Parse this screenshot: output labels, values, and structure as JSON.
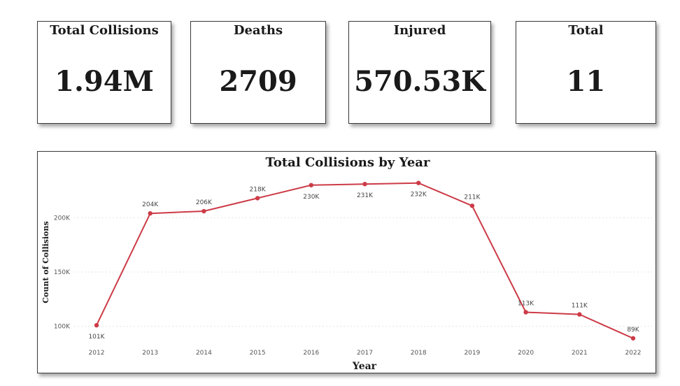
{
  "kpis": [
    {
      "title": "Total Collisions",
      "value": "1.94M"
    },
    {
      "title": "Deaths",
      "value": "2709"
    },
    {
      "title": "Injured",
      "value": "570.53K"
    },
    {
      "title": "Total",
      "value": "11"
    }
  ],
  "colors": {
    "line": "#cc3b47",
    "gridline": "#e3e3e3",
    "border": "#3a3a3a"
  },
  "chart_data": {
    "type": "line",
    "title": "Total Collisions by Year",
    "xlabel": "Year",
    "ylabel": "Count of Collisions",
    "x": [
      "2012",
      "2013",
      "2014",
      "2015",
      "2016",
      "2017",
      "2018",
      "2019",
      "2020",
      "2021",
      "2022"
    ],
    "series": [
      {
        "values": [
          101000,
          204000,
          206000,
          218000,
          230000,
          231000,
          232000,
          211000,
          113000,
          111000,
          89000
        ],
        "labels": [
          "101K",
          "204K",
          "206K",
          "218K",
          "230K",
          "231K",
          "232K",
          "211K",
          "113K",
          "111K",
          "89K"
        ]
      }
    ],
    "yticks": [
      100000,
      150000,
      200000
    ],
    "ytick_labels": [
      "100K",
      "150K",
      "200K"
    ],
    "ylim": [
      85000,
      235000
    ],
    "grid": true,
    "legend": "none"
  }
}
